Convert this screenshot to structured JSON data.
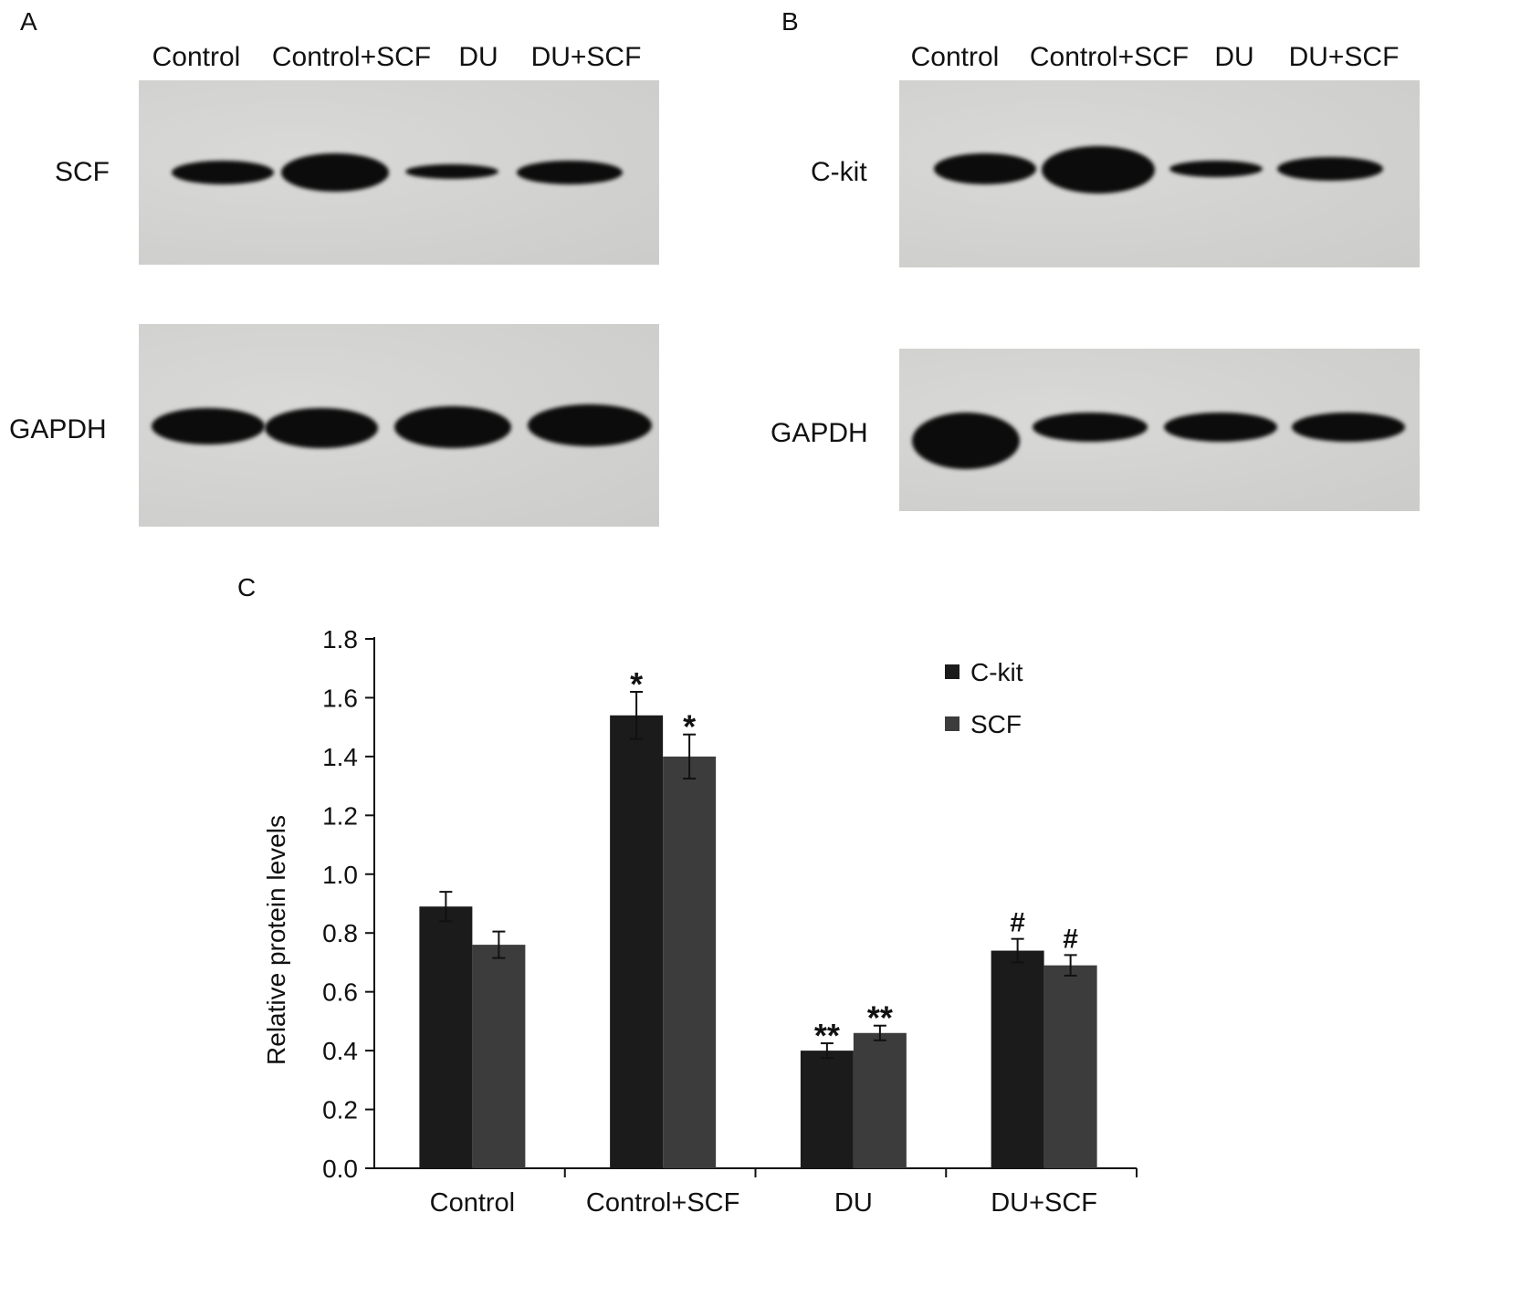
{
  "panels": {
    "a": {
      "letter": "A",
      "lanes": [
        "Control",
        "Control+SCF",
        "DU",
        "DU+SCF"
      ],
      "rows": [
        "SCF",
        "GAPDH"
      ]
    },
    "b": {
      "letter": "B",
      "lanes": [
        "Control",
        "Control+SCF",
        "DU",
        "DU+SCF"
      ],
      "rows": [
        "C-kit",
        "GAPDH"
      ]
    },
    "c": {
      "letter": "C"
    }
  },
  "colors": {
    "c_kit": "#1b1b1b",
    "scf": "#3c3c3c",
    "blot": "#d4d4d2",
    "band": "#0c0c0c"
  },
  "chart_data": {
    "type": "bar",
    "categories": [
      "Control",
      "Control+SCF",
      "DU",
      "DU+SCF"
    ],
    "series": [
      {
        "name": "C-kit",
        "values": [
          0.89,
          1.54,
          0.4,
          0.74
        ],
        "errors": [
          0.05,
          0.08,
          0.025,
          0.04
        ],
        "markers": [
          "",
          "*",
          "**",
          "#"
        ]
      },
      {
        "name": "SCF",
        "values": [
          0.76,
          1.4,
          0.46,
          0.69
        ],
        "errors": [
          0.045,
          0.075,
          0.025,
          0.035
        ],
        "markers": [
          "",
          "*",
          "**",
          "#"
        ]
      }
    ],
    "ylabel": "Relative protein levels",
    "xlabel": "",
    "ylim": [
      0,
      1.8
    ],
    "yticks": [
      "0.0",
      "0.2",
      "0.4",
      "0.6",
      "0.8",
      "1.0",
      "1.2",
      "1.4",
      "1.6",
      "1.8"
    ],
    "grid": false,
    "legend_position": "top-right"
  }
}
